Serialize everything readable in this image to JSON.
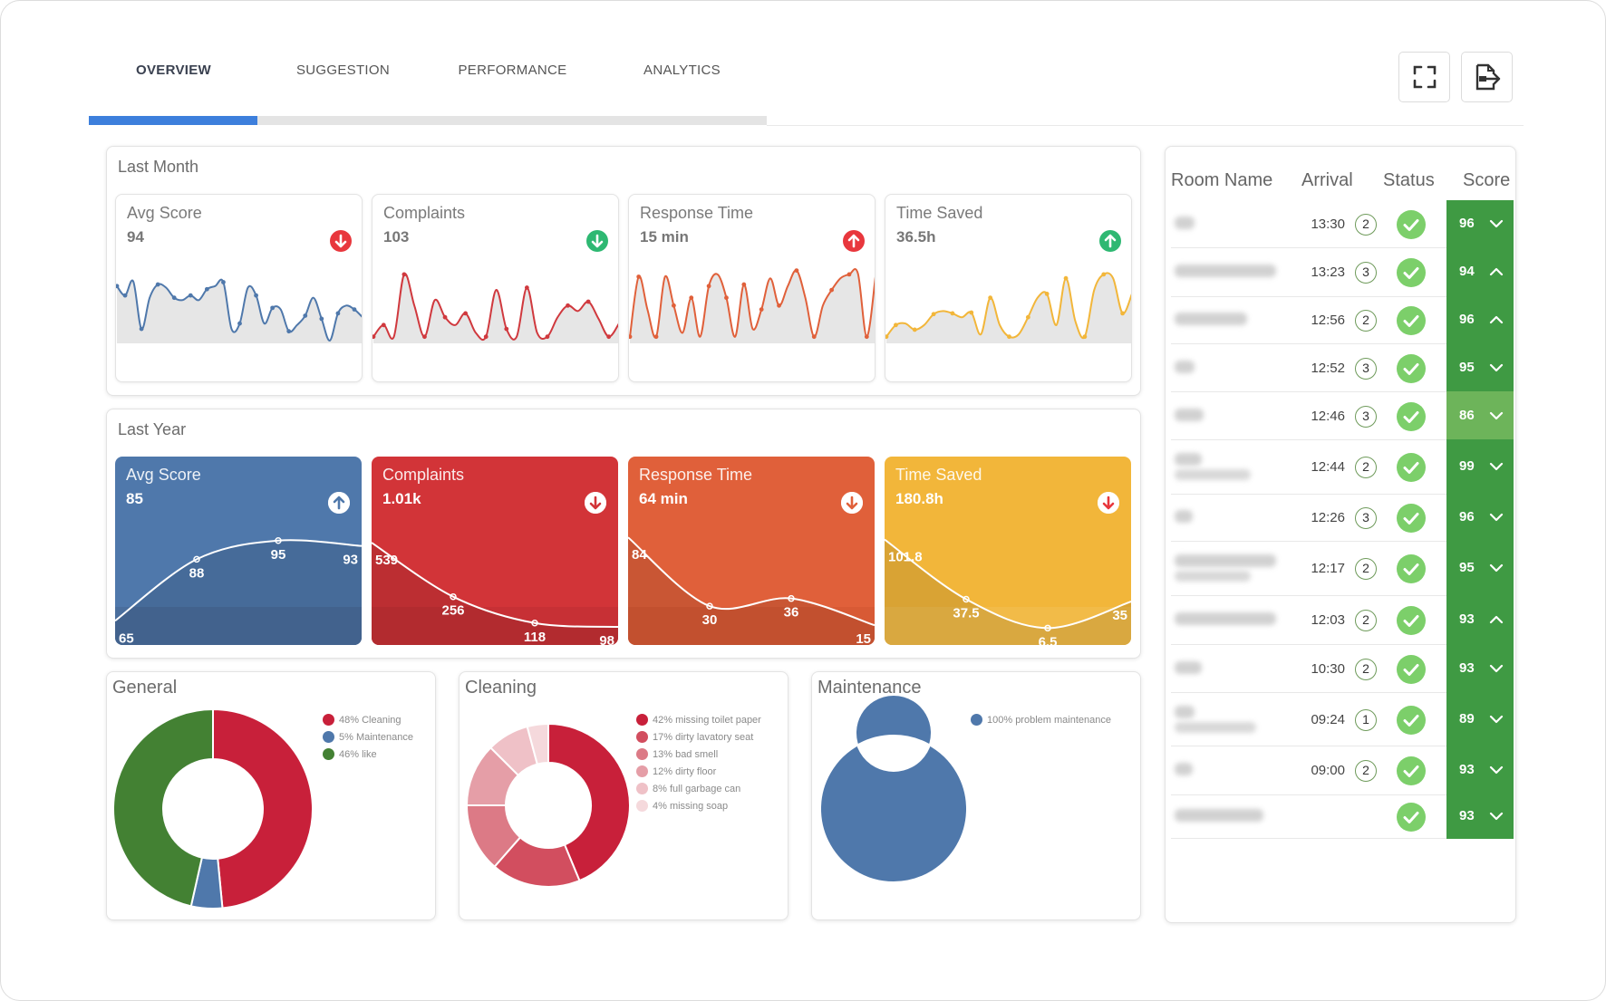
{
  "tabs": [
    {
      "label": "OVERVIEW",
      "active": true
    },
    {
      "label": "SUGGESTION",
      "active": false
    },
    {
      "label": "PERFORMANCE",
      "active": false
    },
    {
      "label": "ANALYTICS",
      "active": false
    }
  ],
  "toolbar": {
    "fullscreen_icon": "fullscreen-icon",
    "export_icon": "pdf-export-icon"
  },
  "last_month": {
    "title": "Last Month",
    "cards": [
      {
        "label": "Avg Score",
        "value": "94",
        "trend": "down",
        "trend_color": "#e8373d",
        "color": "#4f78ab",
        "series": [
          70,
          58,
          76,
          15,
          55,
          72,
          68,
          55,
          52,
          58,
          52,
          66,
          70,
          75,
          15,
          22,
          68,
          58,
          22,
          42,
          40,
          12,
          20,
          32,
          55,
          28,
          0,
          35,
          45,
          40,
          30
        ]
      },
      {
        "label": "Complaints",
        "value": "103",
        "trend": "down",
        "trend_color": "#2eb872",
        "color": "#d0393e",
        "series": [
          5,
          20,
          5,
          85,
          45,
          5,
          52,
          30,
          20,
          35,
          10,
          5,
          65,
          15,
          5,
          68,
          10,
          5,
          30,
          45,
          38,
          50,
          28,
          5,
          22
        ]
      },
      {
        "label": "Response Time",
        "value": "15 min",
        "trend": "up",
        "trend_color": "#e8373d",
        "color": "#e0603a",
        "series": [
          5,
          82,
          40,
          5,
          82,
          45,
          10,
          55,
          5,
          70,
          85,
          55,
          5,
          72,
          15,
          40,
          80,
          45,
          70,
          90,
          55,
          5,
          45,
          65,
          80,
          85,
          86,
          5,
          82
        ]
      },
      {
        "label": "Time Saved",
        "value": "36.5h",
        "trend": "up",
        "trend_color": "#2eb872",
        "color": "#f2b63a",
        "series": [
          5,
          20,
          22,
          14,
          20,
          34,
          38,
          35,
          30,
          36,
          8,
          55,
          20,
          5,
          8,
          30,
          55,
          60,
          20,
          80,
          25,
          5,
          65,
          85,
          80,
          35,
          60
        ]
      }
    ]
  },
  "last_year": {
    "title": "Last Year",
    "cards": [
      {
        "label": "Avg Score",
        "value": "85",
        "trend": "up",
        "trend_color": "#4f78ab",
        "bg": "#4f78ab",
        "band": "#4a6e9d",
        "points": [
          {
            "label": "65",
            "value": 65,
            "shown": true
          },
          {
            "label": "88",
            "value": 88,
            "shown": true
          },
          {
            "label": "95",
            "value": 95,
            "shown": true
          },
          {
            "label": "93",
            "value": 93,
            "shown": true
          }
        ],
        "range": [
          60,
          100
        ]
      },
      {
        "label": "Complaints",
        "value": "1.01k",
        "trend": "down",
        "trend_color": "#d23438",
        "bg": "#d23438",
        "band": "#c73035",
        "points": [
          {
            "label": "539",
            "value": 539,
            "shown": true
          },
          {
            "label": "256",
            "value": 256,
            "shown": true
          },
          {
            "label": "118",
            "value": 118,
            "shown": true
          },
          {
            "label": "98",
            "value": 98,
            "shown": true
          }
        ],
        "range": [
          60,
          620
        ]
      },
      {
        "label": "Response Time",
        "value": "64 min",
        "trend": "down",
        "trend_color": "#e0603a",
        "bg": "#e0603a",
        "band": "#d85a35",
        "points": [
          {
            "label": "84",
            "value": 84,
            "shown": true
          },
          {
            "label": "30",
            "value": 30,
            "shown": true
          },
          {
            "label": "36",
            "value": 36,
            "shown": true
          },
          {
            "label": "15",
            "value": 15,
            "shown": true
          }
        ],
        "range": [
          8,
          92
        ]
      },
      {
        "label": "Time Saved",
        "value": "180.8h",
        "trend": "down",
        "trend_color": "#e8373d",
        "bg": "#f2b63a",
        "band": "#f2bb48",
        "points": [
          {
            "label": "101.8",
            "value": 101.8,
            "shown": true
          },
          {
            "label": "37.5",
            "value": 37.5,
            "shown": true
          },
          {
            "label": "6.5",
            "value": 6.5,
            "shown": true
          },
          {
            "label": "35",
            "value": 35,
            "shown": true
          }
        ],
        "range": [
          0,
          115
        ]
      }
    ]
  },
  "donuts": [
    {
      "title": "General",
      "slices": [
        {
          "label": "48% Cleaning",
          "value": 48,
          "color": "#c8203a"
        },
        {
          "label": "5% Maintenance",
          "value": 5,
          "color": "#4f78ab"
        },
        {
          "label": "46% like",
          "value": 46,
          "color": "#438133"
        }
      ]
    },
    {
      "title": "Cleaning",
      "slices": [
        {
          "label": "42% missing toilet paper",
          "value": 42,
          "color": "#c8203a"
        },
        {
          "label": "17% dirty lavatory seat",
          "value": 17,
          "color": "#d24e5f"
        },
        {
          "label": "13% bad smell",
          "value": 13,
          "color": "#dc7a86"
        },
        {
          "label": "12% dirty floor",
          "value": 12,
          "color": "#e59ea7"
        },
        {
          "label": "8% full garbage can",
          "value": 8,
          "color": "#efc1c7"
        },
        {
          "label": "4% missing soap",
          "value": 4,
          "color": "#f5d9dc"
        }
      ]
    },
    {
      "title": "Maintenance",
      "slices": [
        {
          "label": "100% problem maintenance",
          "value": 100,
          "color": "#4f78ab"
        }
      ]
    }
  ],
  "table": {
    "headers": [
      "Room Name",
      "Arrival",
      "Status",
      "Score"
    ],
    "rows": [
      {
        "arrival": "13:30",
        "count": "2",
        "score": "96",
        "expanded": false
      },
      {
        "arrival": "13:23",
        "count": "3",
        "score": "94",
        "expanded": true
      },
      {
        "arrival": "12:56",
        "count": "2",
        "score": "96",
        "expanded": true
      },
      {
        "arrival": "12:52",
        "count": "3",
        "score": "95",
        "expanded": false
      },
      {
        "arrival": "12:46",
        "count": "3",
        "score": "86",
        "expanded": false
      },
      {
        "arrival": "12:44",
        "count": "2",
        "score": "99",
        "expanded": false
      },
      {
        "arrival": "12:26",
        "count": "3",
        "score": "96",
        "expanded": false
      },
      {
        "arrival": "12:17",
        "count": "2",
        "score": "95",
        "expanded": false
      },
      {
        "arrival": "12:03",
        "count": "2",
        "score": "93",
        "expanded": true
      },
      {
        "arrival": "10:30",
        "count": "2",
        "score": "93",
        "expanded": false
      },
      {
        "arrival": "09:24",
        "count": "1",
        "score": "89",
        "expanded": false
      },
      {
        "arrival": "09:00",
        "count": "2",
        "score": "93",
        "expanded": false
      },
      {
        "arrival": "",
        "count": "",
        "score": "93",
        "expanded": false
      }
    ],
    "score_color": "#3f9a43",
    "score_color_light": "#6db45a"
  }
}
